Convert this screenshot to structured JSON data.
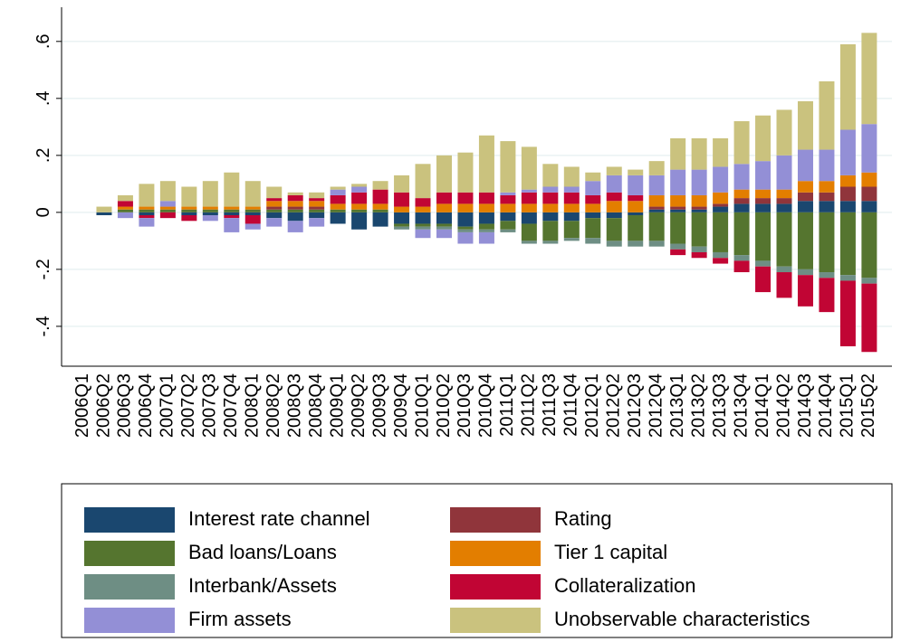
{
  "chart_data": {
    "type": "stacked-bar",
    "categories": [
      "2006Q1",
      "2006Q2",
      "2006Q3",
      "2006Q4",
      "2007Q1",
      "2007Q2",
      "2007Q3",
      "2007Q4",
      "2008Q1",
      "2008Q2",
      "2008Q3",
      "2008Q4",
      "2009Q1",
      "2009Q2",
      "2009Q3",
      "2009Q4",
      "2010Q1",
      "2010Q2",
      "2010Q3",
      "2010Q4",
      "2011Q1",
      "2011Q2",
      "2011Q3",
      "2011Q4",
      "2012Q1",
      "2012Q2",
      "2012Q3",
      "2012Q4",
      "2013Q1",
      "2013Q2",
      "2013Q3",
      "2013Q4",
      "2014Q1",
      "2014Q2",
      "2014Q3",
      "2014Q4",
      "2015Q1",
      "2015Q2"
    ],
    "series": [
      {
        "name": "Interest rate channel",
        "color": "#1a476f",
        "values": [
          0,
          -0.01,
          0,
          -0.01,
          0,
          -0.01,
          -0.01,
          -0.01,
          -0.01,
          -0.02,
          -0.03,
          -0.02,
          -0.04,
          -0.06,
          -0.05,
          -0.04,
          -0.04,
          -0.04,
          -0.05,
          -0.04,
          -0.03,
          -0.04,
          -0.03,
          -0.03,
          -0.02,
          -0.02,
          -0.01,
          0.01,
          0.01,
          0.01,
          0.02,
          0.03,
          0.03,
          0.03,
          0.04,
          0.04,
          0.04,
          0.04
        ]
      },
      {
        "name": "Bad loans/Loans",
        "color": "#55752f",
        "values": [
          0,
          0,
          0.01,
          0.01,
          0.01,
          0.01,
          0.01,
          0.01,
          0.01,
          0.01,
          0.01,
          0.01,
          0.01,
          0.01,
          0.01,
          -0.01,
          -0.01,
          -0.01,
          -0.01,
          -0.02,
          -0.03,
          -0.06,
          -0.07,
          -0.06,
          -0.07,
          -0.08,
          -0.09,
          -0.1,
          -0.11,
          -0.12,
          -0.14,
          -0.15,
          -0.17,
          -0.19,
          -0.2,
          -0.21,
          -0.22,
          -0.23
        ]
      },
      {
        "name": "Interbank/Assets",
        "color": "#6e8e84",
        "values": [
          0,
          0,
          0,
          0,
          0,
          0,
          0,
          0,
          0,
          0,
          0,
          0,
          0,
          0,
          0,
          -0.01,
          -0.01,
          -0.01,
          -0.01,
          -0.01,
          -0.01,
          -0.01,
          -0.01,
          -0.01,
          -0.02,
          -0.02,
          -0.02,
          -0.02,
          -0.02,
          -0.02,
          -0.02,
          -0.02,
          -0.02,
          -0.02,
          -0.02,
          -0.02,
          -0.02,
          -0.02
        ]
      },
      {
        "name": "Rating",
        "color": "#90353b",
        "values": [
          0,
          0,
          0,
          0,
          0,
          0,
          0,
          0,
          0,
          0.01,
          0.01,
          0.01,
          0,
          0,
          0,
          0,
          0,
          0,
          0,
          0,
          0,
          0,
          0,
          0,
          0,
          0,
          0,
          0.01,
          0.01,
          0.01,
          0.01,
          0.02,
          0.02,
          0.02,
          0.03,
          0.03,
          0.05,
          0.05
        ]
      },
      {
        "name": "Tier 1 capital",
        "color": "#e37e00",
        "values": [
          0,
          0,
          0.01,
          0.01,
          0.01,
          0.01,
          0.01,
          0.01,
          0.01,
          0.02,
          0.02,
          0.02,
          0.02,
          0.02,
          0.02,
          0.02,
          0.02,
          0.03,
          0.03,
          0.03,
          0.03,
          0.03,
          0.03,
          0.03,
          0.03,
          0.04,
          0.04,
          0.04,
          0.04,
          0.04,
          0.04,
          0.03,
          0.03,
          0.03,
          0.04,
          0.04,
          0.04,
          0.05
        ]
      },
      {
        "name": "Collateralization",
        "color": "#c10534",
        "values": [
          0,
          0,
          0.02,
          -0.01,
          -0.02,
          -0.02,
          0,
          -0.01,
          -0.03,
          0.01,
          0.02,
          0.01,
          0.03,
          0.04,
          0.05,
          0.05,
          0.03,
          0.04,
          0.04,
          0.04,
          0.03,
          0.04,
          0.04,
          0.04,
          0.03,
          0.03,
          0.02,
          0,
          -0.02,
          -0.02,
          -0.02,
          -0.04,
          -0.09,
          -0.09,
          -0.11,
          -0.12,
          -0.23,
          -0.24
        ]
      },
      {
        "name": "Firm assets",
        "color": "#938fd6",
        "values": [
          0,
          0,
          -0.02,
          -0.03,
          0.02,
          0,
          -0.02,
          -0.05,
          -0.02,
          -0.03,
          -0.04,
          -0.03,
          0.02,
          0.02,
          0,
          0,
          -0.03,
          -0.03,
          -0.04,
          -0.04,
          0.01,
          0.01,
          0.02,
          0.02,
          0.05,
          0.06,
          0.07,
          0.07,
          0.09,
          0.09,
          0.09,
          0.09,
          0.1,
          0.12,
          0.11,
          0.11,
          0.16,
          0.17
        ]
      },
      {
        "name": "Unobservable characteristics",
        "color": "#cac27e",
        "values": [
          0,
          0.02,
          0.02,
          0.08,
          0.07,
          0.07,
          0.09,
          0.12,
          0.09,
          0.04,
          0.01,
          0.02,
          0.01,
          0.01,
          0.03,
          0.06,
          0.12,
          0.13,
          0.14,
          0.2,
          0.18,
          0.15,
          0.08,
          0.07,
          0.03,
          0.03,
          0.02,
          0.05,
          0.11,
          0.11,
          0.1,
          0.15,
          0.16,
          0.16,
          0.17,
          0.24,
          0.3,
          0.32
        ]
      }
    ],
    "ylim": [
      -0.54,
      0.72
    ],
    "yticks": [
      {
        "value": -0.4,
        "label": "-.4"
      },
      {
        "value": -0.2,
        "label": "-.2"
      },
      0,
      {
        "value": 0.2,
        "label": ".2"
      },
      {
        "value": 0.4,
        "label": ".4"
      },
      {
        "value": 0.6,
        "label": ".6"
      }
    ],
    "grid": true
  }
}
